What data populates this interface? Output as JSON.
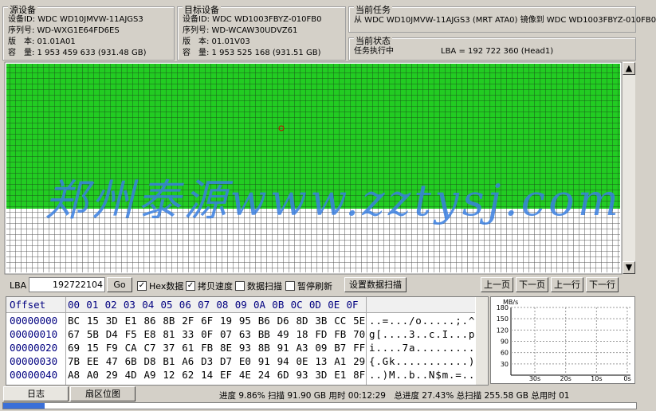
{
  "source": {
    "title": "源设备",
    "lines": [
      "设备ID: WDC WD10JMVW-11AJGS3",
      "序列号: WD-WXG1E64FD6ES",
      "版　本: 01.01A01",
      "容　量: 1 953 459 633 (931.48 GB)"
    ]
  },
  "target": {
    "title": "目标设备",
    "lines": [
      "设备ID: WDC WD1003FBYZ-010FB0",
      "序列号: WD-WCAW30UDVZ61",
      "版　本: 01.01V03",
      "容　量: 1 953 525 168 (931.51 GB)"
    ]
  },
  "task": {
    "title": "当前任务",
    "text": "从 WDC WD10JMVW-11AJGS3 (MRT ATA0) 镜像到 WDC WD1003FBYZ-010FB0"
  },
  "status": {
    "title": "当前状态",
    "state": "任务执行中",
    "lba": "LBA = 192 722 360 (Head1)"
  },
  "watermark": "郑州泰源www.zztysj.com",
  "controls": {
    "lba_label": "LBA",
    "lba_value": "192722104",
    "go": "Go",
    "checks": [
      {
        "label": "Hex数据",
        "checked": true
      },
      {
        "label": "拷贝速度",
        "checked": true
      },
      {
        "label": "数据扫描",
        "checked": false
      },
      {
        "label": "暂停刷新",
        "checked": false
      }
    ],
    "scan_button": "设置数据扫描",
    "nav": [
      "上一页",
      "下一页",
      "上一行",
      "下一行"
    ]
  },
  "hex": {
    "offset_header": "Offset",
    "columns": [
      "00",
      "01",
      "02",
      "03",
      "04",
      "05",
      "06",
      "07",
      "08",
      "09",
      "0A",
      "0B",
      "0C",
      "0D",
      "0E",
      "0F"
    ],
    "rows": [
      {
        "offset": "00000000",
        "bytes": "BC 15 3D E1 86 8B 2F 6F 19 95 B6 D6 8D 3B CC 5E",
        "ascii": "..=.../o.....;.^"
      },
      {
        "offset": "00000010",
        "bytes": "67 5B D4 F5 E8 81 33 0F 07 63 BB 49 18 FD FB 70",
        "ascii": "g[....3..c.I...p"
      },
      {
        "offset": "00000020",
        "bytes": "69 15 F9 CA C7 37 61 FB 8E 93 8B 91 A3 09 B7 FF",
        "ascii": "i....7a........."
      },
      {
        "offset": "00000030",
        "bytes": "7B EE 47 6B D8 B1 A6 D3 D7 E0 91 94 0E 13 A1 29",
        "ascii": "{.Gk...........)"
      },
      {
        "offset": "00000040",
        "bytes": "A8 A0 29 4D A9 12 62 14 EF 4E 24 6D 93 3D E1 8F",
        "ascii": "..)M..b..N$m.=.."
      }
    ]
  },
  "speed_chart": {
    "unit": "MB/s",
    "ylim": [
      0,
      180
    ],
    "yticks": [
      180,
      150,
      120,
      90,
      60,
      30
    ],
    "xticks": [
      "30s",
      "20s",
      "10s",
      "0s"
    ]
  },
  "tabs": [
    "日志",
    "扇区位图"
  ],
  "statusbar": "进度 9.86% 扫描 91.90 GB 用时 00:12:29　总进度 27.43% 总扫描 255.58 GB 总用时 01"
}
